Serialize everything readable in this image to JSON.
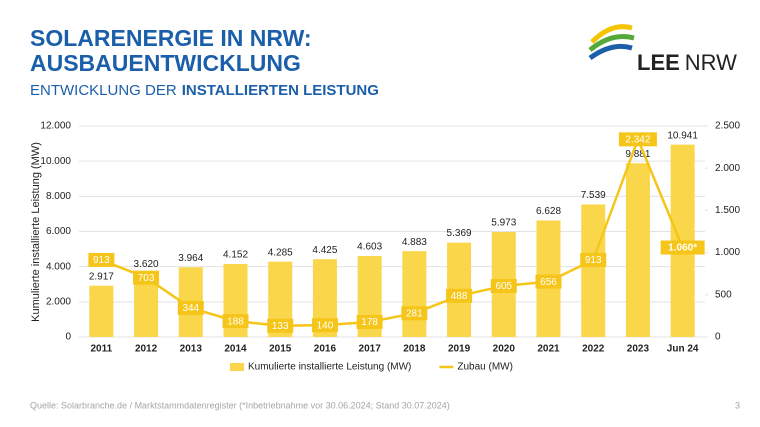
{
  "title": [
    "SOLARENERGIE IN NRW:",
    "AUSBAUENTWICKLUNG"
  ],
  "subtitle": [
    "ENTWICKLUNG DER",
    "INSTALLIERTEN LEISTUNG"
  ],
  "logo": [
    "LEE",
    "NRW"
  ],
  "footer": {
    "source": "Quelle: Solarbranche.de / Marktstammdatenregister (*Inbetriebnahme vor 30.06.2024; Stand 30.07.2024)",
    "page": "3"
  },
  "chart_data": {
    "type": "bar",
    "y_label": "Kumulierte installierte Leistung (MW)",
    "categories": [
      "2011",
      "2012",
      "2013",
      "2014",
      "2015",
      "2016",
      "2017",
      "2018",
      "2019",
      "2020",
      "2021",
      "2022",
      "2023",
      "Jun 24"
    ],
    "series": [
      {
        "name": "Kumulierte installierte Leistung (MW)",
        "type": "bar",
        "color": "#fad64b",
        "values": [
          2917,
          3620,
          3964,
          4152,
          4285,
          4425,
          4603,
          4883,
          5369,
          5973,
          6628,
          7539,
          9881,
          10941
        ],
        "value_labels": [
          "2.917",
          "3.620",
          "3.964",
          "4.152",
          "4.285",
          "4.425",
          "4.603",
          "4.883",
          "5.369",
          "5.973",
          "6.628",
          "7.539",
          "9.881",
          "10.941"
        ]
      },
      {
        "name": "Zubau (MW)",
        "type": "line",
        "axis": "y2",
        "color": "#f6c519",
        "values": [
          913,
          703,
          344,
          188,
          133,
          140,
          178,
          281,
          488,
          605,
          656,
          913,
          2342,
          1060
        ],
        "value_labels": [
          "913",
          "703",
          "344",
          "188",
          "133",
          "140",
          "178",
          "281",
          "488",
          "605",
          "656",
          "913",
          "2.342",
          "1.060*"
        ]
      }
    ],
    "ylim": [
      0,
      12000
    ],
    "yticks": [
      0,
      {
        "value": 2000,
        "label": "2.000"
      },
      {
        "value": 4000,
        "label": "4.000"
      },
      {
        "value": 6000,
        "label": "6.000"
      },
      {
        "value": 8000,
        "label": "8.000"
      },
      {
        "value": 10000,
        "label": "10.000"
      },
      {
        "value": 12000,
        "label": "12.000"
      }
    ],
    "y2lim": [
      0,
      2500
    ],
    "y2ticks": [
      0,
      500,
      {
        "value": 1000,
        "label": "1.000"
      },
      {
        "value": 1500,
        "label": "1.500"
      },
      {
        "value": 2000,
        "label": "2.000"
      },
      {
        "value": 2500,
        "label": "2.500"
      }
    ],
    "grid": true,
    "legend": "bottom"
  }
}
